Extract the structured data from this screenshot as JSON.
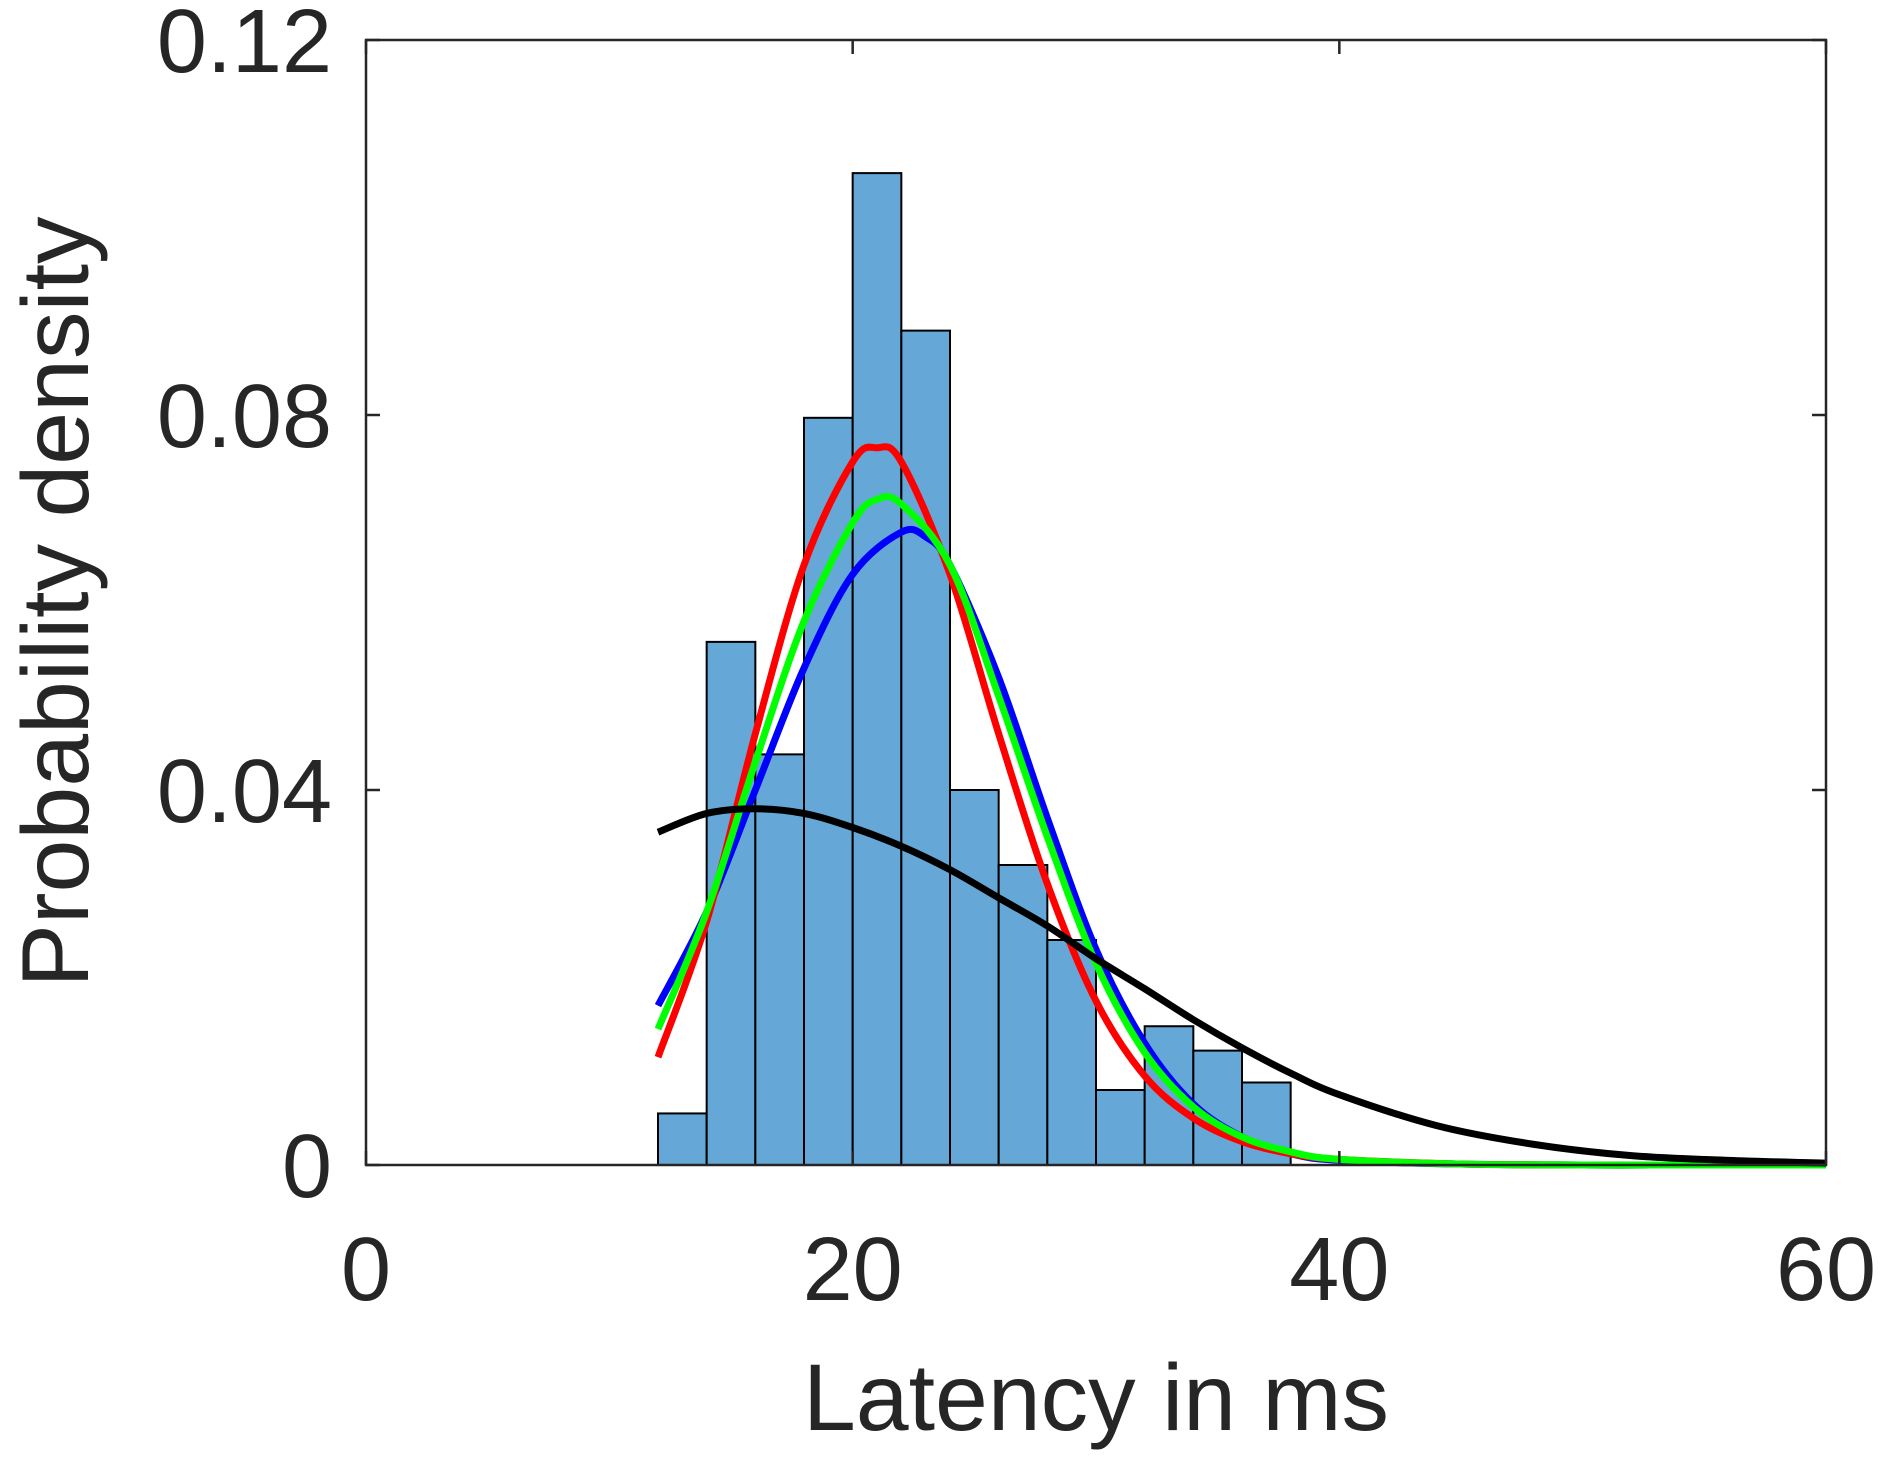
{
  "chart_data": {
    "type": "bar",
    "xlabel": "Latency in ms",
    "ylabel": "Probability density",
    "xlim": [
      0,
      60
    ],
    "ylim": [
      0,
      0.12
    ],
    "xticks": [
      0,
      20,
      40,
      60
    ],
    "yticks": [
      0,
      0.04,
      0.08,
      0.12
    ],
    "xtick_labels": [
      "0",
      "20",
      "40",
      "60"
    ],
    "ytick_labels": [
      "0",
      "0.04",
      "0.08",
      "0.12"
    ],
    "grid": false,
    "histogram": {
      "bin_width": 2,
      "bin_edges": [
        12,
        14,
        16,
        18,
        20,
        22,
        24,
        26,
        28,
        30,
        32,
        34,
        36,
        38
      ],
      "values": [
        0.0055,
        0.0558,
        0.0438,
        0.0797,
        0.1058,
        0.089,
        0.04,
        0.032,
        0.024,
        0.008,
        0.0148,
        0.0122,
        0.0088
      ],
      "color": "#65a8d7",
      "edge_color": "#000000"
    },
    "series": [
      {
        "color": "#0000ff",
        "x": [
          12,
          14,
          16,
          18,
          20,
          22,
          23,
          24,
          26,
          28,
          30,
          32,
          34,
          36,
          38,
          40,
          45,
          50,
          55,
          60
        ],
        "y": [
          0.017,
          0.027,
          0.04,
          0.053,
          0.063,
          0.0675,
          0.067,
          0.064,
          0.052,
          0.037,
          0.023,
          0.013,
          0.0065,
          0.003,
          0.0012,
          0.0005,
          0.0001,
          0,
          0,
          0
        ]
      },
      {
        "color": "#ff0000",
        "x": [
          12,
          14,
          16,
          18,
          20,
          21,
          22,
          24,
          26,
          28,
          30,
          32,
          34,
          36,
          38,
          40,
          45,
          50,
          55,
          60
        ],
        "y": [
          0.0115,
          0.026,
          0.046,
          0.064,
          0.075,
          0.0765,
          0.075,
          0.063,
          0.046,
          0.03,
          0.0175,
          0.0095,
          0.005,
          0.0025,
          0.0012,
          0.0006,
          0.0001,
          0,
          0,
          0
        ]
      },
      {
        "color": "#00ff00",
        "x": [
          12,
          14,
          16,
          18,
          20,
          21,
          22,
          24,
          26,
          28,
          30,
          32,
          34,
          36,
          38,
          40,
          45,
          50,
          55,
          60
        ],
        "y": [
          0.0145,
          0.027,
          0.043,
          0.058,
          0.0685,
          0.071,
          0.0705,
          0.064,
          0.05,
          0.035,
          0.0215,
          0.012,
          0.0062,
          0.003,
          0.0014,
          0.0006,
          0.0001,
          0,
          0,
          0
        ]
      },
      {
        "color": "#000000",
        "x": [
          12,
          14,
          16,
          18,
          20,
          22,
          24,
          26,
          28,
          30,
          32,
          34,
          36,
          38,
          40,
          44,
          48,
          52,
          56,
          60
        ],
        "y": [
          0.0355,
          0.0375,
          0.038,
          0.0375,
          0.036,
          0.034,
          0.0315,
          0.0285,
          0.0255,
          0.022,
          0.0188,
          0.0155,
          0.0125,
          0.0098,
          0.0075,
          0.0042,
          0.0022,
          0.001,
          0.0005,
          0.0002
        ]
      }
    ]
  }
}
